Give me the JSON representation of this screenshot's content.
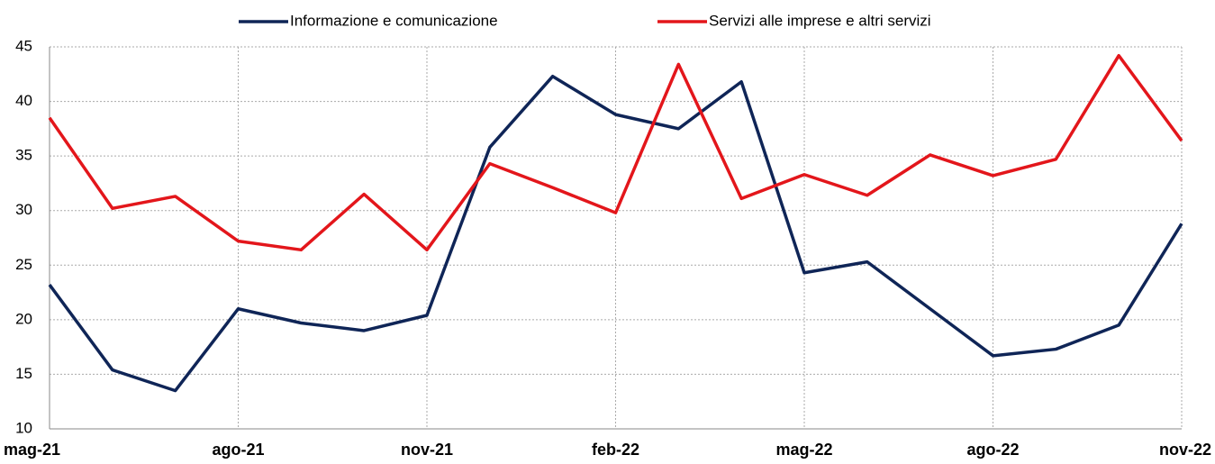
{
  "chart_data": {
    "type": "line",
    "categories": [
      "mag-21",
      null,
      null,
      "ago-21",
      null,
      null,
      "nov-21",
      null,
      null,
      "feb-22",
      null,
      null,
      "mag-22",
      null,
      null,
      "ago-22",
      null,
      null,
      "nov-22"
    ],
    "series": [
      {
        "name": "Informazione e comunicazione",
        "color": "#0f2557",
        "values": [
          23.2,
          15.4,
          13.5,
          21.0,
          19.7,
          19.0,
          20.4,
          35.8,
          42.3,
          38.8,
          37.5,
          41.8,
          24.3,
          25.3,
          21.0,
          16.7,
          17.3,
          19.5,
          28.8
        ]
      },
      {
        "name": "Servizi alle imprese e altri servizi",
        "color": "#e3161b",
        "values": [
          38.5,
          30.2,
          31.3,
          27.2,
          26.4,
          31.5,
          26.4,
          34.3,
          32.1,
          29.8,
          43.4,
          31.1,
          33.3,
          31.4,
          35.1,
          33.2,
          34.7,
          44.2,
          36.4
        ]
      }
    ],
    "ylim": [
      10,
      45
    ],
    "yticks": [
      10,
      15,
      20,
      25,
      30,
      35,
      40,
      45
    ],
    "grid": true
  }
}
